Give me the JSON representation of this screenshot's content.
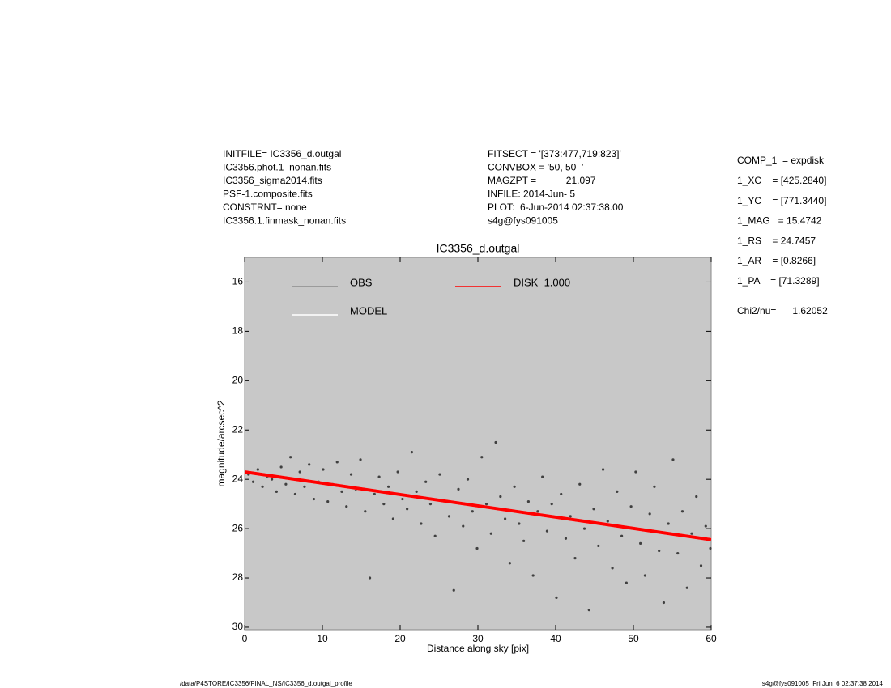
{
  "header": {
    "left": [
      "INITFILE= IC3356_d.outgal",
      "IC3356.phot.1_nonan.fits",
      "IC3356_sigma2014.fits",
      "PSF-1.composite.fits",
      "CONSTRNT= none",
      "IC3356.1.finmask_nonan.fits"
    ],
    "middle": [
      "FITSECT = '[373:477,719:823]'",
      "CONVBOX = '50, 50  '",
      "MAGZPT =           21.097",
      "INFILE: 2014-Jun- 5",
      "PLOT:  6-Jun-2014 02:37:38.00",
      "s4g@fys091005"
    ],
    "right": [
      "COMP_1  = expdisk",
      "1_XC    = [425.2840]",
      "1_YC    = [771.3440]",
      "1_MAG   = 15.4742",
      "1_RS    = 24.7457",
      "1_AR    = [0.8266]",
      "1_PA    = [71.3289]"
    ],
    "chi": "Chi2/nu=      1.62052"
  },
  "footer": {
    "left": "/data/P4STORE/IC3356/FINAL_NS/IC3356_d.outgal_profile",
    "right": "s4g@fys091005  Fri Jun  6 02:37:38 2014"
  },
  "chart_data": {
    "type": "scatter",
    "title": "IC3356_d.outgal",
    "xlabel": "Distance along sky [pix]",
    "ylabel": "magnitude/arcsec^2",
    "xlim": [
      0,
      60
    ],
    "xticks": [
      0,
      10,
      20,
      30,
      40,
      50,
      60
    ],
    "ylim": [
      30.1,
      15
    ],
    "yticks": [
      16,
      18,
      20,
      22,
      24,
      26,
      28,
      30
    ],
    "background": "#c8c8c8",
    "series": [
      {
        "name": "OBS",
        "color": "#404040",
        "legend_color": "#8c8c8c",
        "style": "points",
        "x": [
          0.5,
          1.1,
          1.7,
          2.3,
          2.9,
          3.5,
          4.1,
          4.7,
          5.3,
          5.9,
          6.5,
          7.1,
          7.7,
          8.3,
          8.9,
          9.5,
          10.1,
          10.7,
          11.3,
          11.9,
          12.5,
          13.1,
          13.7,
          14.3,
          14.9,
          15.5,
          16.1,
          16.7,
          17.3,
          17.9,
          18.5,
          19.1,
          19.7,
          20.3,
          20.9,
          21.5,
          22.1,
          22.7,
          23.3,
          23.9,
          24.5,
          25.1,
          25.7,
          26.3,
          26.9,
          27.5,
          28.1,
          28.7,
          29.3,
          29.9,
          30.5,
          31.1,
          31.7,
          32.3,
          32.9,
          33.5,
          34.1,
          34.7,
          35.3,
          35.9,
          36.5,
          37.1,
          37.7,
          38.3,
          38.9,
          39.5,
          40.1,
          40.7,
          41.3,
          41.9,
          42.5,
          43.1,
          43.7,
          44.3,
          44.9,
          45.5,
          46.1,
          46.7,
          47.3,
          47.9,
          48.5,
          49.1,
          49.7,
          50.3,
          50.9,
          51.5,
          52.1,
          52.7,
          53.3,
          53.9,
          54.5,
          55.1,
          55.7,
          56.3,
          56.9,
          57.5,
          58.1,
          58.7,
          59.3,
          59.9
        ],
        "values": [
          23.8,
          24.1,
          23.6,
          24.3,
          23.9,
          24.0,
          24.5,
          23.5,
          24.2,
          23.1,
          24.6,
          23.7,
          24.3,
          23.4,
          24.8,
          24.1,
          23.6,
          24.9,
          24.2,
          23.3,
          24.5,
          25.1,
          23.8,
          24.4,
          23.2,
          25.3,
          28.0,
          24.6,
          23.9,
          25.0,
          24.3,
          25.6,
          23.7,
          24.8,
          25.2,
          22.9,
          24.5,
          25.8,
          24.1,
          25.0,
          26.3,
          23.8,
          24.9,
          25.5,
          28.5,
          24.4,
          25.9,
          24.0,
          25.3,
          26.8,
          23.1,
          25.0,
          26.2,
          22.5,
          24.7,
          25.6,
          27.4,
          24.3,
          25.8,
          26.5,
          24.9,
          27.9,
          25.3,
          23.9,
          26.1,
          25.0,
          28.8,
          24.6,
          26.4,
          25.5,
          27.2,
          24.2,
          26.0,
          29.3,
          25.2,
          26.7,
          23.6,
          25.7,
          27.6,
          24.5,
          26.3,
          28.2,
          25.1,
          23.7,
          26.6,
          27.9,
          25.4,
          24.3,
          26.9,
          29.0,
          25.8,
          23.2,
          27.0,
          25.3,
          28.4,
          26.2,
          24.7,
          27.5,
          25.9,
          26.8
        ]
      },
      {
        "name": "MODEL",
        "color": "#ffffff",
        "legend_color": "#ffffff",
        "style": "line",
        "x": [
          0,
          60
        ],
        "values": [
          23.7,
          26.45
        ]
      },
      {
        "name": "DISK  1.000",
        "color": "#ff0000",
        "legend_color": "#ff0000",
        "style": "line",
        "x": [
          0,
          60
        ],
        "values": [
          23.7,
          26.45
        ]
      }
    ]
  }
}
